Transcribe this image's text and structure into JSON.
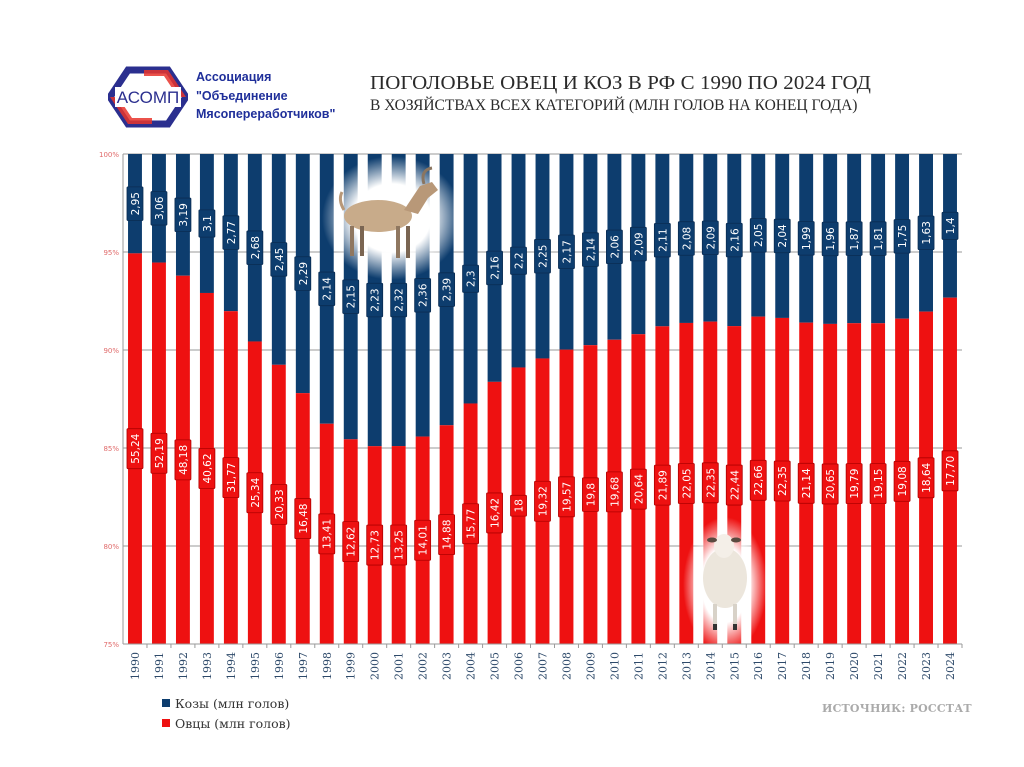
{
  "header": {
    "logo_text": "АСОМП",
    "org_lines": [
      "Ассоциация",
      "\"Объединение",
      "Мясопереработчиков\""
    ],
    "title": "ПОГОЛОВЬЕ ОВЕЦ И КОЗ В РФ С 1990 ПО 2024 ГОД",
    "subtitle": "В ХОЗЯЙСТВАХ ВСЕХ КАТЕГОРИЙ (МЛН ГОЛОВ НА КОНЕЦ ГОДА)"
  },
  "legend": {
    "items": [
      {
        "label": "Козы (млн голов)",
        "color": "#0d3d6e"
      },
      {
        "label": "Овцы (млн голов)",
        "color": "#ee1111"
      }
    ]
  },
  "source": "ИСТОЧНИК: РОССТАТ",
  "images": {
    "goat": "goat-photo",
    "sheep": "sheep-photo"
  },
  "chart_data": {
    "type": "bar",
    "stacked": "percent",
    "title": "ПОГОЛОВЬЕ ОВЕЦ И КОЗ В РФ С 1990 ПО 2024 ГОД",
    "subtitle": "В ХОЗЯЙСТВАХ ВСЕХ КАТЕГОРИЙ (МЛН ГОЛОВ НА КОНЕЦ ГОДА)",
    "xlabel": "",
    "ylabel": "",
    "ylim": [
      75,
      100
    ],
    "yticks": [
      "75%",
      "80%",
      "85%",
      "90%",
      "95%",
      "100%"
    ],
    "ytick_values": [
      75,
      80,
      85,
      90,
      95,
      100
    ],
    "grid": true,
    "legend_position": "bottom-left",
    "categories": [
      "1990",
      "1991",
      "1992",
      "1993",
      "1994",
      "1995",
      "1996",
      "1997",
      "1998",
      "1999",
      "2000",
      "2001",
      "2002",
      "2003",
      "2004",
      "2005",
      "2006",
      "2007",
      "2008",
      "2009",
      "2010",
      "2011",
      "2012",
      "2013",
      "2014",
      "2015",
      "2016",
      "2017",
      "2018",
      "2019",
      "2020",
      "2021",
      "2022",
      "2023",
      "2024"
    ],
    "series": [
      {
        "name": "Овцы (млн голов)",
        "color": "#ee1111",
        "values": [
          55.24,
          52.19,
          48.18,
          40.62,
          31.77,
          25.34,
          20.33,
          16.48,
          13.41,
          12.62,
          12.73,
          13.25,
          14.01,
          14.88,
          15.77,
          16.42,
          18,
          19.32,
          19.57,
          19.8,
          19.68,
          20.64,
          21.89,
          22.05,
          22.35,
          22.44,
          22.66,
          22.35,
          21.14,
          20.65,
          19.79,
          19.15,
          19.08,
          18.64,
          17.7
        ],
        "labels": [
          "55,24",
          "52,19",
          "48,18",
          "40,62",
          "31,77",
          "25,34",
          "20,33",
          "16,48",
          "13,41",
          "12,62",
          "12,73",
          "13,25",
          "14,01",
          "14,88",
          "15,77",
          "16,42",
          "18",
          "19,32",
          "19,57",
          "19,8",
          "19,68",
          "20,64",
          "21,89",
          "22,05",
          "22,35",
          "22,44",
          "22,66",
          "22,35",
          "21,14",
          "20,65",
          "19,79",
          "19,15",
          "19,08",
          "18,64",
          "17,70"
        ]
      },
      {
        "name": "Козы (млн голов)",
        "color": "#0d3d6e",
        "values": [
          2.95,
          3.06,
          3.19,
          3.1,
          2.77,
          2.68,
          2.45,
          2.29,
          2.14,
          2.15,
          2.23,
          2.32,
          2.36,
          2.39,
          2.3,
          2.16,
          2.2,
          2.25,
          2.17,
          2.14,
          2.06,
          2.09,
          2.11,
          2.08,
          2.09,
          2.16,
          2.05,
          2.04,
          1.99,
          1.96,
          1.87,
          1.81,
          1.75,
          1.63,
          1.4
        ],
        "labels": [
          "2,95",
          "3,06",
          "3,19",
          "3,1",
          "2,77",
          "2,68",
          "2,45",
          "2,29",
          "2,14",
          "2,15",
          "2,23",
          "2,32",
          "2,36",
          "2,39",
          "2,3",
          "2,16",
          "2,2",
          "2,25",
          "2,17",
          "2,14",
          "2,06",
          "2,09",
          "2,11",
          "2,08",
          "2,09",
          "2,16",
          "2,05",
          "2,04",
          "1,99",
          "1,96",
          "1,87",
          "1,81",
          "1,75",
          "1,63",
          "1,4"
        ]
      }
    ]
  }
}
